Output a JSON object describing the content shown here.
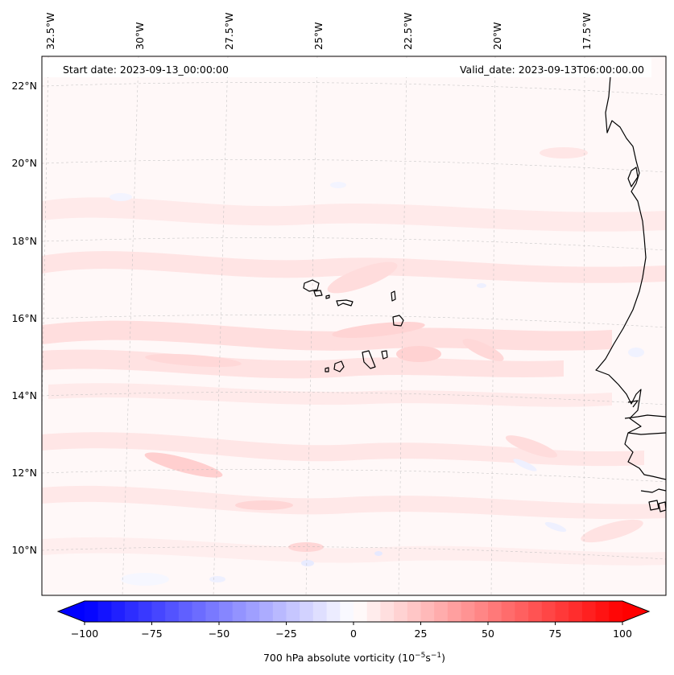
{
  "map": {
    "start_date": "Start date: 2023-09-13_00:00:00",
    "valid_date": "Valid_date: 2023-09-13T06:00:00.00",
    "lon_labels": [
      "32.5°W",
      "30°W",
      "27.5°W",
      "25°W",
      "22.5°W",
      "20°W",
      "17.5°W"
    ],
    "lat_labels": [
      "22°N",
      "20°N",
      "18°N",
      "16°N",
      "14°N",
      "12°N",
      "10°N"
    ],
    "colors": {
      "background": "#fff8f8",
      "coastline": "#000000",
      "gridline": "#bbbbbb",
      "positive_max": "#ff0000",
      "negative_max": "#0000ff",
      "neutral": "#ffffff"
    }
  },
  "colorbar": {
    "ticks": [
      "−100",
      "−75",
      "−50",
      "−25",
      "0",
      "25",
      "50",
      "75",
      "100"
    ],
    "tick_values": [
      -100,
      -75,
      -50,
      -25,
      0,
      25,
      50,
      75,
      100
    ],
    "range": [
      -100,
      100
    ],
    "levels": 40,
    "extend": "both",
    "label_prefix": "700 hPa absolute vorticity (10",
    "label_exp1": "−5",
    "label_mid": "s",
    "label_exp2": "−1",
    "label_suffix": ")"
  }
}
